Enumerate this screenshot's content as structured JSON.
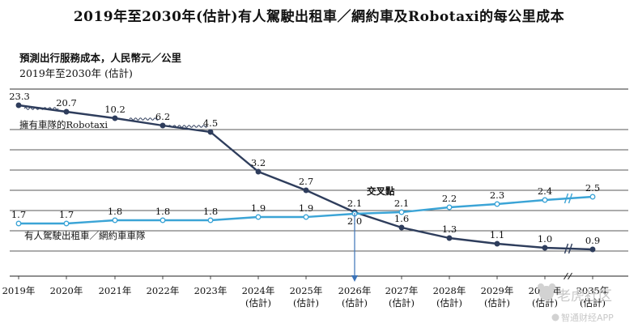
{
  "title": "2019年至2030年(估計)有人駕駛出租車／網約車及Robotaxi的每公里成本",
  "unit_label": "預測出行服務成本，人民幣元／公里",
  "range_label": "2019年至2030年 (估計)",
  "chart_data": {
    "type": "line",
    "title": "2019年至2030年(估計)有人駕駛出租車／網約車及Robotaxi的每公里成本",
    "ylabel": "預測出行服務成本，人民幣元／公里",
    "ylim": [
      0,
      24
    ],
    "grid": true,
    "x": [
      "2019年",
      "2020年",
      "2021年",
      "2022年",
      "2023年",
      "2024年",
      "2025年",
      "2026年",
      "2027年",
      "2028年",
      "2029年",
      "2030年",
      "2035年"
    ],
    "x_sublabels": [
      "",
      "",
      "",
      "",
      "",
      "(估計)",
      "(估計)",
      "(估計)",
      "(估計)",
      "(估計)",
      "(估計)",
      "(估計)",
      "(估計)"
    ],
    "axis_break_after": "2030年",
    "series": [
      {
        "name": "擁有車隊的Robotaxi",
        "color": "#2e3d5c",
        "values": [
          23.3,
          20.7,
          10.2,
          6.2,
          4.5,
          3.2,
          2.7,
          2.1,
          1.6,
          1.3,
          1.1,
          1.0,
          0.9
        ],
        "labels": [
          "23.3",
          "20.7",
          "10.2",
          "6.2",
          "4.5",
          "3.2",
          "2.7",
          "2.1",
          "1.6",
          "1.3",
          "1.1",
          "1.0",
          "0.9"
        ]
      },
      {
        "name": "有人駕駛出租車／網約車車隊",
        "color": "#3ba4d6",
        "values": [
          1.7,
          1.7,
          1.8,
          1.8,
          1.8,
          1.9,
          1.9,
          2.0,
          2.1,
          2.2,
          2.3,
          2.4,
          2.5
        ],
        "labels": [
          "1.7",
          "1.7",
          "1.8",
          "1.8",
          "1.8",
          "1.9",
          "1.9",
          "2.0",
          "2.1",
          "2.2",
          "2.3",
          "2.4",
          "2.5"
        ]
      }
    ],
    "annotations": [
      {
        "text": "交叉點",
        "x": "2026年"
      }
    ]
  },
  "watermark": {
    "icon": "bear-logo-icon",
    "brand": "智通财经APP",
    "text": "老虎社区"
  }
}
